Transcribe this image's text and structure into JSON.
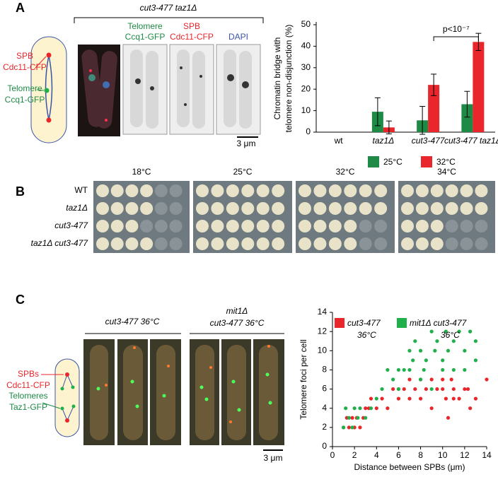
{
  "panels": {
    "a": "A",
    "b": "B",
    "c": "C"
  },
  "panel_a": {
    "genotype": "cut3-477 taz1Δ",
    "schematic": {
      "spb": "SPB",
      "spb_protein": "Cdc11-CFP",
      "telomere": "Telomere",
      "telomere_protein": "Ccq1-GFP"
    },
    "channels": [
      {
        "line1": "Telomere",
        "line2": "Ccq1-GFP"
      },
      {
        "line1": "SPB",
        "line2": "Cdc11-CFP"
      },
      {
        "line2": "DAPI"
      }
    ],
    "scale_bar": "3 μm"
  },
  "panel_b": {
    "temperatures": [
      "18°C",
      "25°C",
      "32°C",
      "34°C"
    ],
    "strains": [
      "WT",
      "taz1Δ",
      "cut3-477",
      "taz1Δ cut3-477"
    ]
  },
  "panel_c": {
    "groups": [
      {
        "line2": "cut3-477 36°C"
      },
      {
        "line1": "mit1Δ",
        "line2": "cut3-477 36°C"
      }
    ],
    "schematic": {
      "spb": "SPBs",
      "spb_protein": "Cdc11-CFP",
      "telomere": "Telomeres",
      "telomere_protein": "Taz1-GFP"
    },
    "scale_bar": "3 μm"
  },
  "chart_data": [
    {
      "type": "bar",
      "y_label": [
        "Chromatin bridge with",
        "telomere non-disjunction (%)"
      ],
      "categories": [
        "wt",
        "taz1Δ",
        "cut3-477",
        "cut3-477 taz1Δ"
      ],
      "series": [
        {
          "name": "25°C",
          "color": "#1e8a46",
          "values": [
            0,
            9.5,
            5.5,
            13
          ],
          "errors": [
            0,
            6.5,
            6.5,
            6
          ]
        },
        {
          "name": "32°C",
          "color": "#e8262b",
          "values": [
            0,
            2.2,
            22,
            42
          ],
          "errors": [
            0,
            3,
            5,
            4
          ]
        }
      ],
      "ylim": [
        0,
        50
      ],
      "yticks": [
        0,
        10,
        20,
        30,
        40,
        50
      ],
      "annotation": "p<10⁻⁷"
    },
    {
      "type": "scatter",
      "x_label": "Distance between SPBs (μm)",
      "y_label": "Telomere foci per cell",
      "series": [
        {
          "name": "cut3-477",
          "condition": "36°C",
          "color": "#e8262b",
          "x": [
            1,
            1.3,
            1.5,
            1.8,
            2,
            2.2,
            2.5,
            2.8,
            3,
            3.3,
            3.5,
            4,
            4.5,
            5,
            5.5,
            6,
            6.5,
            7,
            7.5,
            8,
            8.5,
            9,
            9.5,
            10,
            10.3,
            10.5,
            10.8,
            11,
            11.5,
            12,
            12.5,
            13,
            14,
            9,
            8,
            7,
            6,
            11,
            10,
            12.3
          ],
          "values": [
            2,
            3,
            2,
            3,
            2,
            3,
            2,
            3,
            4,
            4,
            5,
            4,
            5,
            4,
            6,
            5,
            6,
            5,
            6,
            7,
            6,
            7,
            6,
            7,
            5,
            3,
            7,
            6,
            5,
            6,
            4,
            5,
            7,
            4,
            5,
            7,
            6,
            5,
            6,
            6
          ]
        },
        {
          "name": "mit1Δ cut3-477",
          "condition": "36°C",
          "color": "#1fb04b",
          "x": [
            1,
            1.2,
            1.5,
            1.8,
            2,
            2.3,
            2.5,
            3,
            3.5,
            4,
            4.5,
            5,
            5.5,
            6,
            6.5,
            7,
            7.3,
            7.5,
            8,
            8.3,
            8.5,
            9,
            9.3,
            9.5,
            10,
            10.3,
            10.5,
            11,
            11.5,
            12,
            12.5,
            13,
            12,
            11,
            10,
            9,
            8,
            7,
            6,
            13
          ],
          "values": [
            2,
            4,
            3,
            2,
            4,
            3,
            4,
            3,
            4,
            5,
            6,
            8,
            7,
            8,
            8,
            10,
            9,
            11,
            10,
            8,
            9,
            12,
            10,
            11,
            9,
            12,
            10,
            11,
            12,
            10,
            12,
            11,
            8,
            8,
            8,
            6,
            7,
            8,
            6,
            9
          ]
        }
      ],
      "xlim": [
        0,
        14
      ],
      "xticks": [
        0,
        2,
        4,
        6,
        8,
        10,
        12,
        14
      ],
      "ylim": [
        0,
        14
      ],
      "yticks": [
        0,
        2,
        4,
        6,
        8,
        10,
        12,
        14
      ]
    }
  ]
}
